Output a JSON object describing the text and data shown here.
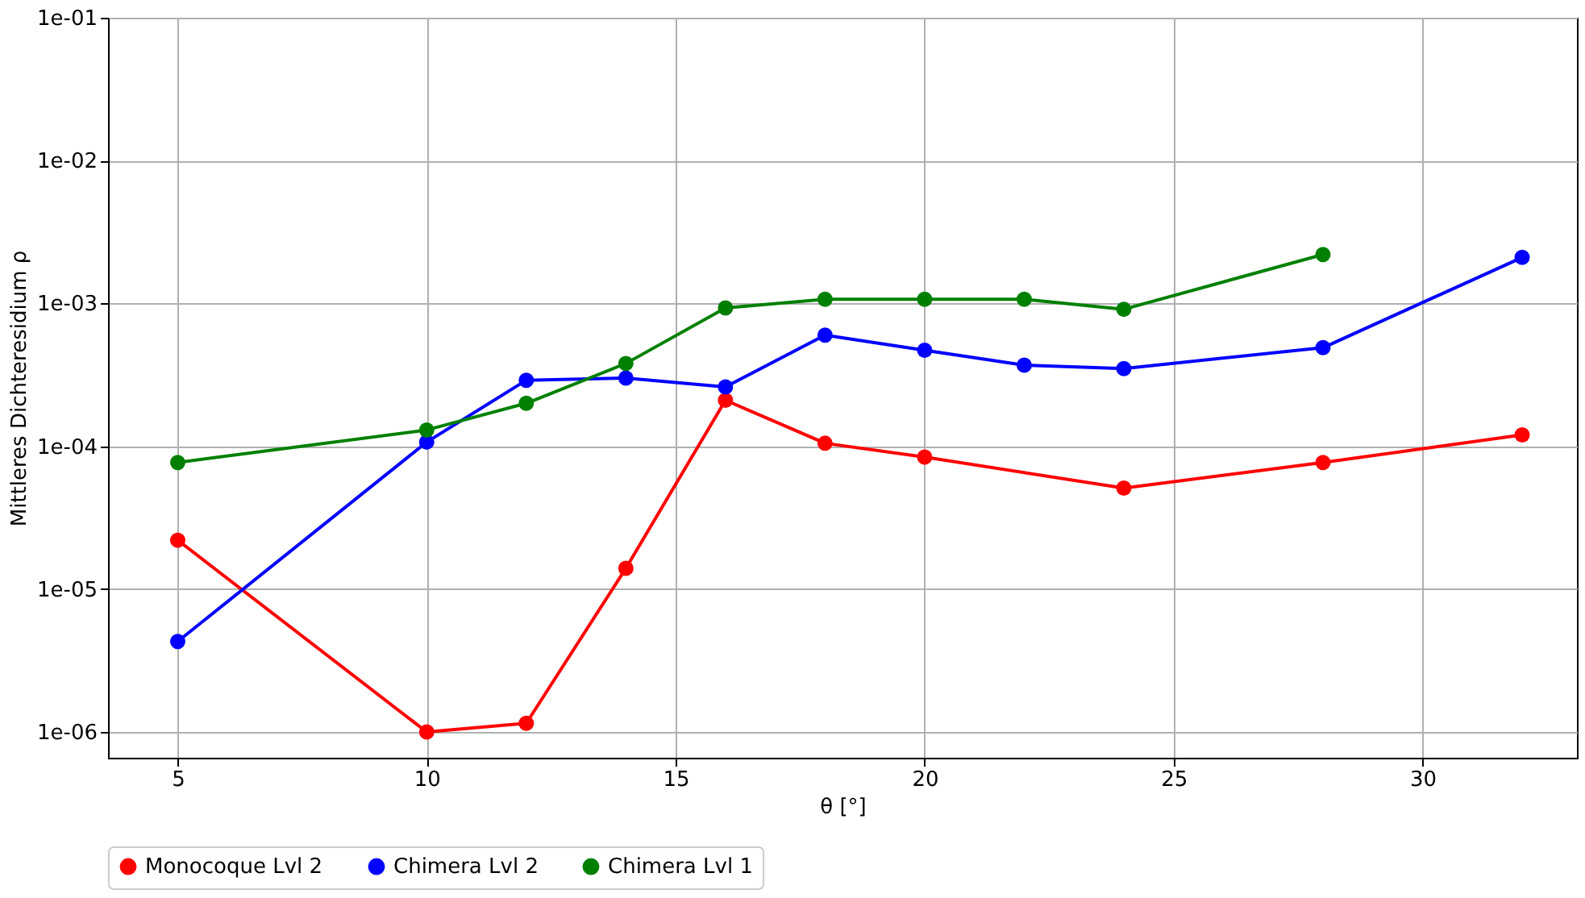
{
  "chart_data": {
    "type": "line",
    "xlabel": "θ [°]",
    "ylabel": "Mittleres Dichteresidium ρ",
    "log": "y",
    "grid": true,
    "legend": "bottom",
    "marker": "circle",
    "line_style": "solid",
    "xlim": [
      3.6,
      33.1
    ],
    "xticks": [
      5,
      10,
      15,
      20,
      25,
      30
    ],
    "ylim": [
      6.6e-07,
      0.1
    ],
    "yticks": [
      {
        "value": 1e-06,
        "label": "1e-06"
      },
      {
        "value": 1e-05,
        "label": "1e-05"
      },
      {
        "value": 0.0001,
        "label": "1e-04"
      },
      {
        "value": 0.001,
        "label": "1e-03"
      },
      {
        "value": 0.01,
        "label": "1e-02"
      },
      {
        "value": 0.1,
        "label": "1e-01"
      }
    ],
    "series": [
      {
        "name": "Monocoque Lvl 2",
        "color": "#ff0000",
        "x": [
          5,
          10,
          12,
          14,
          16,
          18,
          20,
          24,
          28,
          32
        ],
        "values": [
          2.2e-05,
          1e-06,
          1.15e-06,
          1.4e-05,
          0.00021,
          0.000105,
          8.4e-05,
          5.1e-05,
          7.7e-05,
          0.00012
        ]
      },
      {
        "name": "Chimera Lvl 2",
        "color": "#0000ff",
        "x": [
          5,
          10,
          12,
          14,
          16,
          18,
          20,
          22,
          24,
          28,
          32
        ],
        "values": [
          4.3e-06,
          0.000107,
          0.00029,
          0.0003,
          0.00026,
          0.0006,
          0.00047,
          0.00037,
          0.00035,
          0.00049,
          0.0021
        ]
      },
      {
        "name": "Chimera Lvl 1",
        "color": "#008000",
        "x": [
          5,
          10,
          12,
          14,
          16,
          18,
          20,
          22,
          24,
          28
        ],
        "values": [
          7.7e-05,
          0.00013,
          0.0002,
          0.00038,
          0.00093,
          0.00107,
          0.00107,
          0.00107,
          0.00091,
          0.0022
        ]
      }
    ]
  }
}
